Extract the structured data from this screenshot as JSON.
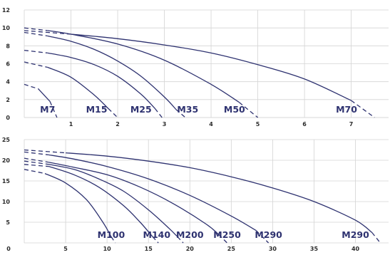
{
  "chart_data": [
    {
      "type": "line",
      "xlim": [
        0,
        7.8
      ],
      "ylim": [
        0,
        12
      ],
      "xticks": [
        1,
        2,
        3,
        4,
        5,
        6,
        7
      ],
      "yticks": [
        0,
        2,
        4,
        6,
        8,
        10,
        12
      ],
      "grid": true,
      "series": [
        {
          "name": "M7",
          "label_at": [
            0.5,
            0
          ],
          "points": [
            [
              0,
              3.7
            ],
            [
              0.3,
              3.2
            ],
            [
              0.55,
              1.8
            ],
            [
              0.7,
              0
            ]
          ]
        },
        {
          "name": "M15",
          "label_at": [
            1.55,
            0
          ],
          "points": [
            [
              0,
              6.2
            ],
            [
              0.5,
              5.6
            ],
            [
              1.0,
              4.5
            ],
            [
              1.5,
              2.5
            ],
            [
              1.8,
              1.0
            ],
            [
              2.0,
              0
            ]
          ]
        },
        {
          "name": "M25",
          "label_at": [
            2.5,
            0
          ],
          "points": [
            [
              0,
              7.5
            ],
            [
              0.5,
              7.2
            ],
            [
              1.0,
              6.7
            ],
            [
              1.5,
              5.9
            ],
            [
              2.0,
              4.6
            ],
            [
              2.5,
              2.6
            ],
            [
              2.8,
              1.0
            ],
            [
              2.95,
              0
            ]
          ]
        },
        {
          "name": "M35",
          "label_at": [
            3.5,
            0
          ],
          "points": [
            [
              0,
              9.5
            ],
            [
              0.5,
              9.1
            ],
            [
              1.0,
              8.5
            ],
            [
              1.5,
              7.6
            ],
            [
              2.0,
              6.3
            ],
            [
              2.5,
              4.6
            ],
            [
              3.0,
              2.3
            ],
            [
              3.25,
              0.9
            ],
            [
              3.45,
              0
            ]
          ]
        },
        {
          "name": "M50",
          "label_at": [
            4.5,
            0
          ],
          "points": [
            [
              0,
              10.0
            ],
            [
              0.5,
              9.7
            ],
            [
              1.0,
              9.3
            ],
            [
              2.0,
              8.2
            ],
            [
              3.0,
              6.4
            ],
            [
              4.0,
              3.7
            ],
            [
              4.6,
              1.7
            ],
            [
              5.0,
              0
            ]
          ]
        },
        {
          "name": "M70",
          "label_at": [
            6.9,
            0
          ],
          "points": [
            [
              0,
              9.7
            ],
            [
              1.0,
              9.3
            ],
            [
              2.0,
              8.8
            ],
            [
              3.0,
              8.1
            ],
            [
              4.0,
              7.2
            ],
            [
              5.0,
              5.9
            ],
            [
              6.0,
              4.3
            ],
            [
              7.0,
              1.9
            ],
            [
              7.5,
              0
            ]
          ]
        }
      ]
    },
    {
      "type": "line",
      "xlim": [
        0,
        44
      ],
      "ylim": [
        0,
        25
      ],
      "xticks": [
        0,
        5,
        10,
        15,
        20,
        25,
        30,
        35,
        40
      ],
      "yticks": [
        5,
        10,
        15,
        20,
        25
      ],
      "grid": true,
      "series": [
        {
          "name": "M100",
          "label_at": [
            10.5,
            0
          ],
          "points": [
            [
              0,
              17.8
            ],
            [
              2.5,
              16.8
            ],
            [
              5,
              14.5
            ],
            [
              7.5,
              10.5
            ],
            [
              9.5,
              5
            ],
            [
              10.5,
              1.5
            ],
            [
              11,
              0
            ]
          ]
        },
        {
          "name": "M140",
          "label_at": [
            16.0,
            0
          ],
          "points": [
            [
              0,
              19.0
            ],
            [
              3,
              18.5
            ],
            [
              6,
              16.5
            ],
            [
              9,
              13.5
            ],
            [
              12,
              9
            ],
            [
              14,
              5
            ],
            [
              15.5,
              1.5
            ],
            [
              16.2,
              0
            ]
          ]
        },
        {
          "name": "M200",
          "label_at": [
            20.0,
            0
          ],
          "points": [
            [
              0,
              19.8
            ],
            [
              3,
              19.0
            ],
            [
              6,
              17.8
            ],
            [
              9,
              15.5
            ],
            [
              12,
              12.5
            ],
            [
              15,
              8
            ],
            [
              17.5,
              3.5
            ],
            [
              18.5,
              1.5
            ],
            [
              19.2,
              0
            ]
          ]
        },
        {
          "name": "M250",
          "label_at": [
            24.5,
            0
          ],
          "points": [
            [
              0,
              20.5
            ],
            [
              3,
              19.5
            ],
            [
              6,
              18.3
            ],
            [
              10,
              16.5
            ],
            [
              14,
              13.5
            ],
            [
              18,
              9.5
            ],
            [
              22,
              4.5
            ],
            [
              23.5,
              2
            ],
            [
              24.5,
              0
            ]
          ]
        },
        {
          "name": "M290",
          "label_at": [
            29.5,
            0
          ],
          "points": [
            [
              0,
              22.0
            ],
            [
              3,
              21.3
            ],
            [
              6,
              20.3
            ],
            [
              10,
              18.5
            ],
            [
              15,
              15.5
            ],
            [
              20,
              11.5
            ],
            [
              25,
              6.5
            ],
            [
              28,
              3
            ],
            [
              29.5,
              0
            ]
          ]
        },
        {
          "name": "M290",
          "label_at": [
            40.0,
            0
          ],
          "points": [
            [
              0,
              22.5
            ],
            [
              5,
              21.8
            ],
            [
              10,
              21.0
            ],
            [
              15,
              19.8
            ],
            [
              20,
              18.2
            ],
            [
              25,
              16.0
            ],
            [
              30,
              13.3
            ],
            [
              35,
              10.0
            ],
            [
              40,
              5.5
            ],
            [
              42,
              2.5
            ],
            [
              43,
              0
            ]
          ]
        }
      ]
    }
  ]
}
